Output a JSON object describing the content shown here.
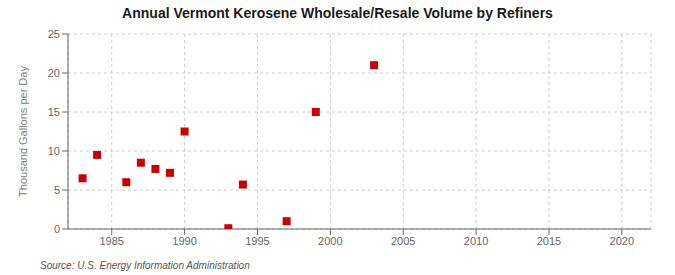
{
  "chart_data": {
    "type": "scatter",
    "title": "Annual Vermont Kerosene Wholesale/Resale Volume by Refiners",
    "ylabel": "Thousand Gallons per Day",
    "annotations": [
      "Source: U.S. Energy Information Administration"
    ],
    "x": [
      1983,
      1984,
      1986,
      1987,
      1988,
      1989,
      1990,
      1993,
      1994,
      1997,
      1999,
      2003
    ],
    "values": [
      6.5,
      9.5,
      6.0,
      8.5,
      7.7,
      7.2,
      12.5,
      0.1,
      5.7,
      1.0,
      15.0,
      21.0
    ],
    "color": "#cc0000",
    "marker": "square",
    "grid": true,
    "xlim": [
      1982,
      2022
    ],
    "ylim": [
      0,
      25
    ],
    "xticks": [
      1985,
      1990,
      1995,
      2000,
      2005,
      2010,
      2015,
      2020
    ],
    "yticks": [
      0,
      5,
      10,
      15,
      20,
      25
    ]
  }
}
